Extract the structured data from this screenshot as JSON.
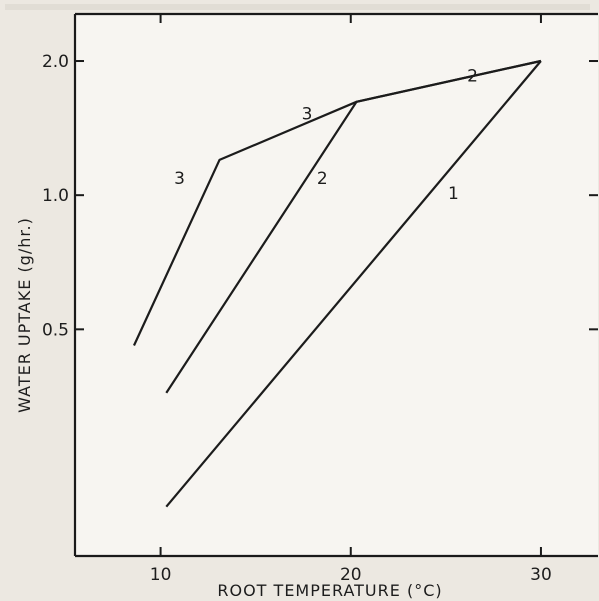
{
  "chart_data": {
    "type": "line",
    "xlabel": "ROOT TEMPERATURE (°C)",
    "ylabel": "WATER UPTAKE (g/hr.)",
    "x_scale": "linear",
    "y_scale": "log",
    "xlim": [
      5.5,
      33
    ],
    "ylim": [
      0.155,
      2.55
    ],
    "x_ticks": [
      10,
      20,
      30
    ],
    "y_ticks": [
      0.5,
      1.0,
      2.0
    ],
    "x_tick_labels": [
      "10",
      "20",
      "30"
    ],
    "y_tick_labels": [
      "0.5",
      "1.0",
      "2.0"
    ],
    "grid": false,
    "legend": "none",
    "series": [
      {
        "name": "1",
        "points": [
          [
            10.3,
            0.2
          ],
          [
            30.0,
            2.0
          ]
        ]
      },
      {
        "name": "2",
        "points": [
          [
            10.3,
            0.36
          ],
          [
            20.3,
            1.62
          ],
          [
            30.0,
            2.0
          ]
        ]
      },
      {
        "name": "3",
        "points": [
          [
            8.6,
            0.46
          ],
          [
            13.1,
            1.2
          ],
          [
            20.3,
            1.62
          ],
          [
            30.0,
            2.0
          ]
        ]
      }
    ],
    "curve_labels": [
      {
        "text": "1",
        "x": 25.4,
        "y": 0.98
      },
      {
        "text": "2",
        "x": 18.5,
        "y": 1.06
      },
      {
        "text": "2",
        "x": 26.4,
        "y": 1.8
      },
      {
        "text": "3",
        "x": 11.0,
        "y": 1.06
      },
      {
        "text": "3",
        "x": 17.7,
        "y": 1.48
      }
    ]
  }
}
